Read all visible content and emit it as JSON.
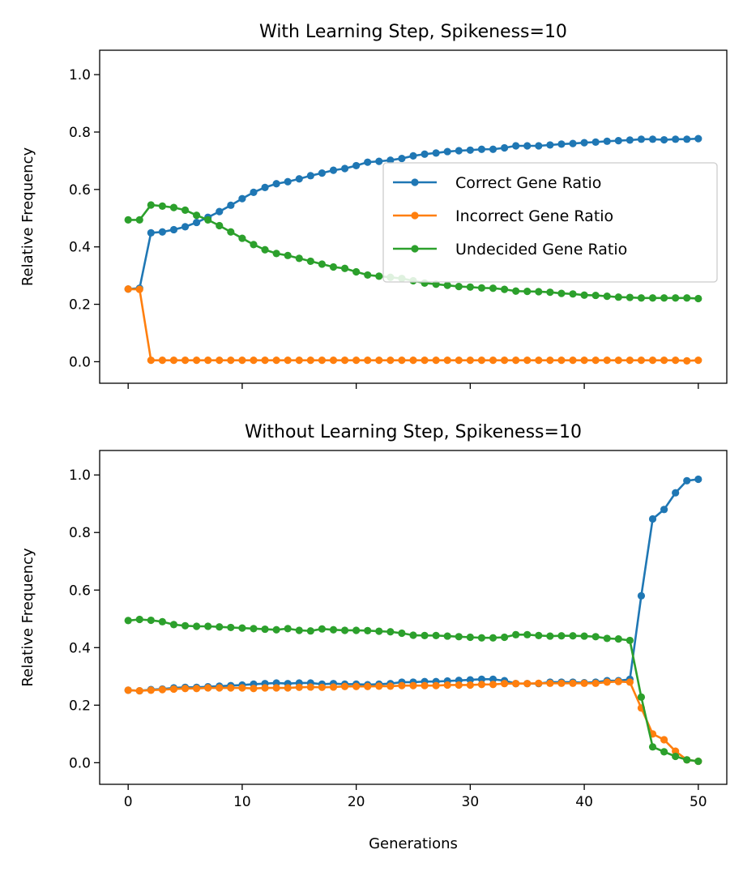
{
  "chart_data": [
    {
      "type": "line",
      "title": "With Learning Step, Spikeness=10",
      "xlabel": "",
      "ylabel": "Relative Frequency",
      "xlim": [
        -2.5,
        52.5
      ],
      "ylim": [
        -0.075,
        1.085
      ],
      "xticks": [
        0,
        10,
        20,
        30,
        40,
        50
      ],
      "yticks": [
        "0.0",
        "0.2",
        "0.4",
        "0.6",
        "0.8",
        "1.0"
      ],
      "show_xtick_labels": false,
      "grid": false,
      "legend": "center-right",
      "x": [
        0,
        1,
        2,
        3,
        4,
        5,
        6,
        7,
        8,
        9,
        10,
        11,
        12,
        13,
        14,
        15,
        16,
        17,
        18,
        19,
        20,
        21,
        22,
        23,
        24,
        25,
        26,
        27,
        28,
        29,
        30,
        31,
        32,
        33,
        34,
        35,
        36,
        37,
        38,
        39,
        40,
        41,
        42,
        43,
        44,
        45,
        46,
        47,
        48,
        49,
        50
      ],
      "series": [
        {
          "name": "Correct Gene Ratio",
          "color": "#1f77b4",
          "values": [
            0.253,
            0.256,
            0.449,
            0.452,
            0.46,
            0.47,
            0.485,
            0.503,
            0.523,
            0.545,
            0.568,
            0.59,
            0.607,
            0.62,
            0.627,
            0.637,
            0.648,
            0.657,
            0.667,
            0.673,
            0.683,
            0.695,
            0.698,
            0.702,
            0.708,
            0.717,
            0.723,
            0.727,
            0.732,
            0.735,
            0.737,
            0.74,
            0.74,
            0.745,
            0.752,
            0.752,
            0.752,
            0.755,
            0.758,
            0.76,
            0.763,
            0.765,
            0.768,
            0.77,
            0.772,
            0.775,
            0.775,
            0.773,
            0.775,
            0.775,
            0.777
          ]
        },
        {
          "name": "Incorrect Gene Ratio",
          "color": "#ff7f0e",
          "values": [
            0.253,
            0.252,
            0.005,
            0.005,
            0.005,
            0.005,
            0.005,
            0.005,
            0.005,
            0.005,
            0.005,
            0.005,
            0.005,
            0.005,
            0.005,
            0.005,
            0.005,
            0.005,
            0.005,
            0.005,
            0.005,
            0.005,
            0.005,
            0.005,
            0.005,
            0.005,
            0.005,
            0.005,
            0.005,
            0.005,
            0.005,
            0.005,
            0.005,
            0.005,
            0.005,
            0.005,
            0.005,
            0.005,
            0.005,
            0.005,
            0.005,
            0.005,
            0.005,
            0.005,
            0.005,
            0.005,
            0.005,
            0.005,
            0.005,
            0.003,
            0.005
          ]
        },
        {
          "name": "Undecided Gene Ratio",
          "color": "#2ca02c",
          "values": [
            0.494,
            0.494,
            0.546,
            0.542,
            0.537,
            0.528,
            0.51,
            0.494,
            0.474,
            0.452,
            0.43,
            0.408,
            0.39,
            0.377,
            0.37,
            0.36,
            0.35,
            0.34,
            0.33,
            0.325,
            0.313,
            0.302,
            0.298,
            0.294,
            0.29,
            0.282,
            0.274,
            0.27,
            0.266,
            0.262,
            0.26,
            0.257,
            0.256,
            0.252,
            0.246,
            0.245,
            0.244,
            0.242,
            0.238,
            0.236,
            0.232,
            0.231,
            0.228,
            0.225,
            0.224,
            0.222,
            0.222,
            0.222,
            0.222,
            0.222,
            0.22
          ]
        }
      ]
    },
    {
      "type": "line",
      "title": "Without Learning Step, Spikeness=10",
      "xlabel": "Generations",
      "ylabel": "Relative Frequency",
      "xlim": [
        -2.5,
        52.5
      ],
      "ylim": [
        -0.075,
        1.085
      ],
      "xticks": [
        0,
        10,
        20,
        30,
        40,
        50
      ],
      "yticks": [
        "0.0",
        "0.2",
        "0.4",
        "0.6",
        "0.8",
        "1.0"
      ],
      "show_xtick_labels": true,
      "grid": false,
      "legend": "none",
      "x": [
        0,
        1,
        2,
        3,
        4,
        5,
        6,
        7,
        8,
        9,
        10,
        11,
        12,
        13,
        14,
        15,
        16,
        17,
        18,
        19,
        20,
        21,
        22,
        23,
        24,
        25,
        26,
        27,
        28,
        29,
        30,
        31,
        32,
        33,
        34,
        35,
        36,
        37,
        38,
        39,
        40,
        41,
        42,
        43,
        44,
        45,
        46,
        47,
        48,
        49,
        50
      ],
      "series": [
        {
          "name": "Correct Gene Ratio",
          "color": "#1f77b4",
          "values": [
            0.252,
            0.25,
            0.254,
            0.256,
            0.26,
            0.262,
            0.262,
            0.264,
            0.266,
            0.268,
            0.27,
            0.273,
            0.275,
            0.277,
            0.275,
            0.277,
            0.277,
            0.273,
            0.275,
            0.273,
            0.273,
            0.271,
            0.273,
            0.275,
            0.28,
            0.28,
            0.282,
            0.282,
            0.284,
            0.286,
            0.288,
            0.29,
            0.29,
            0.285,
            0.275,
            0.275,
            0.275,
            0.28,
            0.28,
            0.28,
            0.278,
            0.28,
            0.285,
            0.285,
            0.29,
            0.58,
            0.847,
            0.88,
            0.938,
            0.98,
            0.985
          ]
        },
        {
          "name": "Incorrect Gene Ratio",
          "color": "#ff7f0e",
          "values": [
            0.252,
            0.25,
            0.252,
            0.254,
            0.256,
            0.258,
            0.258,
            0.26,
            0.26,
            0.26,
            0.26,
            0.258,
            0.26,
            0.26,
            0.26,
            0.262,
            0.263,
            0.262,
            0.263,
            0.265,
            0.265,
            0.265,
            0.266,
            0.266,
            0.268,
            0.268,
            0.268,
            0.268,
            0.27,
            0.27,
            0.27,
            0.272,
            0.272,
            0.275,
            0.275,
            0.275,
            0.276,
            0.276,
            0.276,
            0.276,
            0.276,
            0.276,
            0.28,
            0.282,
            0.28,
            0.19,
            0.1,
            0.08,
            0.04,
            0.01,
            0.005
          ]
        },
        {
          "name": "Undecided Gene Ratio",
          "color": "#2ca02c",
          "values": [
            0.494,
            0.498,
            0.495,
            0.49,
            0.48,
            0.476,
            0.474,
            0.474,
            0.472,
            0.47,
            0.468,
            0.466,
            0.464,
            0.462,
            0.466,
            0.46,
            0.458,
            0.465,
            0.462,
            0.46,
            0.46,
            0.459,
            0.457,
            0.455,
            0.45,
            0.443,
            0.442,
            0.442,
            0.44,
            0.438,
            0.436,
            0.434,
            0.434,
            0.436,
            0.445,
            0.445,
            0.442,
            0.44,
            0.441,
            0.441,
            0.44,
            0.438,
            0.432,
            0.43,
            0.425,
            0.228,
            0.055,
            0.038,
            0.022,
            0.01,
            0.005
          ]
        }
      ]
    }
  ]
}
